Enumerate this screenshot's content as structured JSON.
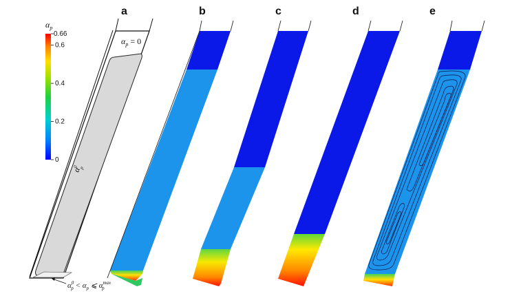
{
  "colorbar": {
    "title": "α",
    "title_sub": "p",
    "max_label": "0.66",
    "ticks": [
      "0.6",
      "0.4",
      "0.2",
      "0"
    ],
    "max_value": 0.66,
    "tick_values": [
      0.6,
      0.4,
      0.2,
      0
    ],
    "colors": [
      "#0000ff",
      "#0090f0",
      "#00d0d0",
      "#20d060",
      "#80e020",
      "#f0e000",
      "#ff8000",
      "#ff0000"
    ]
  },
  "panels": [
    {
      "label": "a"
    },
    {
      "label": "b"
    },
    {
      "label": "c"
    },
    {
      "label": "d"
    },
    {
      "label": "e"
    }
  ],
  "schematic": {
    "top_region": "α",
    "top_region_sub": "p",
    "top_region_rhs": " = 0",
    "middle_region": "α",
    "middle_region_sub": "p",
    "middle_region_sup": "0",
    "bottom_lhs": "α",
    "bottom_lhs_sup": "0",
    "bottom_lhs_sub": "p",
    "bottom_mid": " < α",
    "bottom_mid_sub": "p",
    "bottom_op": " ⩽ α",
    "bottom_rhs_sup": "max",
    "bottom_rhs_sub": "p"
  },
  "fields": {
    "panel_b": {
      "clear_fraction": 0.16,
      "cake_fraction": 0.06
    },
    "panel_c": {
      "clear_fraction": 0.53,
      "cake_fraction": 0.15
    },
    "panel_d": {
      "clear_fraction": 0.8,
      "cake_fraction": 0.2
    },
    "panel_e": {
      "clear_fraction": 0.16,
      "cake_fraction": 0.06
    },
    "colors": {
      "clear": "#0a18e8",
      "suspension": "#1c94ec",
      "cake_top": "#80dd20",
      "cake_mid": "#ffd000",
      "cake_bottom": "#ff1800"
    }
  }
}
